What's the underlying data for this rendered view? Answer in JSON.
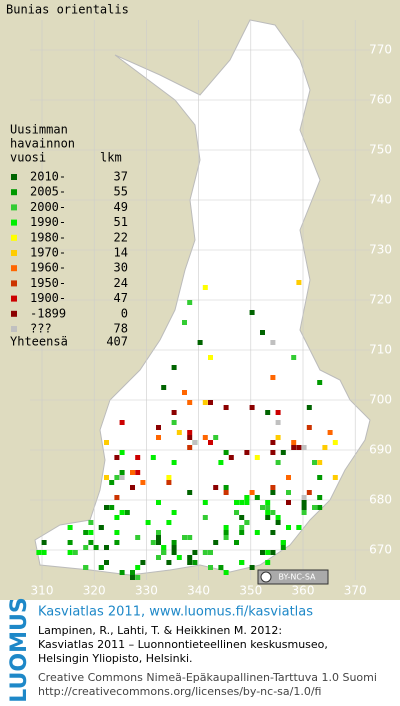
{
  "title": "Bunias orientalis",
  "legend": {
    "header": [
      "Uusimman",
      "havainnon"
    ],
    "col_year": "vuosi",
    "col_count": "lkm",
    "items": [
      {
        "label": "2010-",
        "count": 37,
        "color": "#006400"
      },
      {
        "label": "2005-",
        "count": 55,
        "color": "#009900"
      },
      {
        "label": "2000-",
        "count": 49,
        "color": "#33cc33"
      },
      {
        "label": "1990-",
        "count": 51,
        "color": "#00ee00"
      },
      {
        "label": "1980-",
        "count": 22,
        "color": "#ffff00"
      },
      {
        "label": "1970-",
        "count": 14,
        "color": "#ffcc00"
      },
      {
        "label": "1960-",
        "count": 30,
        "color": "#ff6600"
      },
      {
        "label": "1950-",
        "count": 24,
        "color": "#cc3300"
      },
      {
        "label": "1900-",
        "count": 47,
        "color": "#cc0000"
      },
      {
        "label": "-1899",
        "count": 0,
        "color": "#8b0000"
      },
      {
        "label": "???",
        "count": 78,
        "color": "#c0c0c0"
      }
    ],
    "total_label": "Yhteensä",
    "total": 407
  },
  "grid": {
    "x_labels": [
      "310",
      "320",
      "330",
      "340",
      "350",
      "360",
      "370"
    ],
    "y_labels": [
      "770",
      "760",
      "750",
      "740",
      "730",
      "720",
      "710",
      "700",
      "690",
      "680",
      "670"
    ]
  },
  "license_badge": "BY-NC-SA",
  "footer": {
    "brand": "LUOMUS",
    "headline": "Kasviatlas 2011, www.luomus.fi/kasviatlas",
    "citation": [
      "Lampinen, R., Lahti, T. & Heikkinen M. 2012:",
      "Kasviatlas 2011 – Luonnontieteellinen keskusmuseo,",
      "Helsingin Yliopisto, Helsinki."
    ],
    "license": [
      "Creative Commons Nimeä-Epäkaupallinen-Tarttuva 1.0 Suomi",
      "http://creativecommons.org/licenses/by-nc-sa/1.0/fi"
    ]
  }
}
